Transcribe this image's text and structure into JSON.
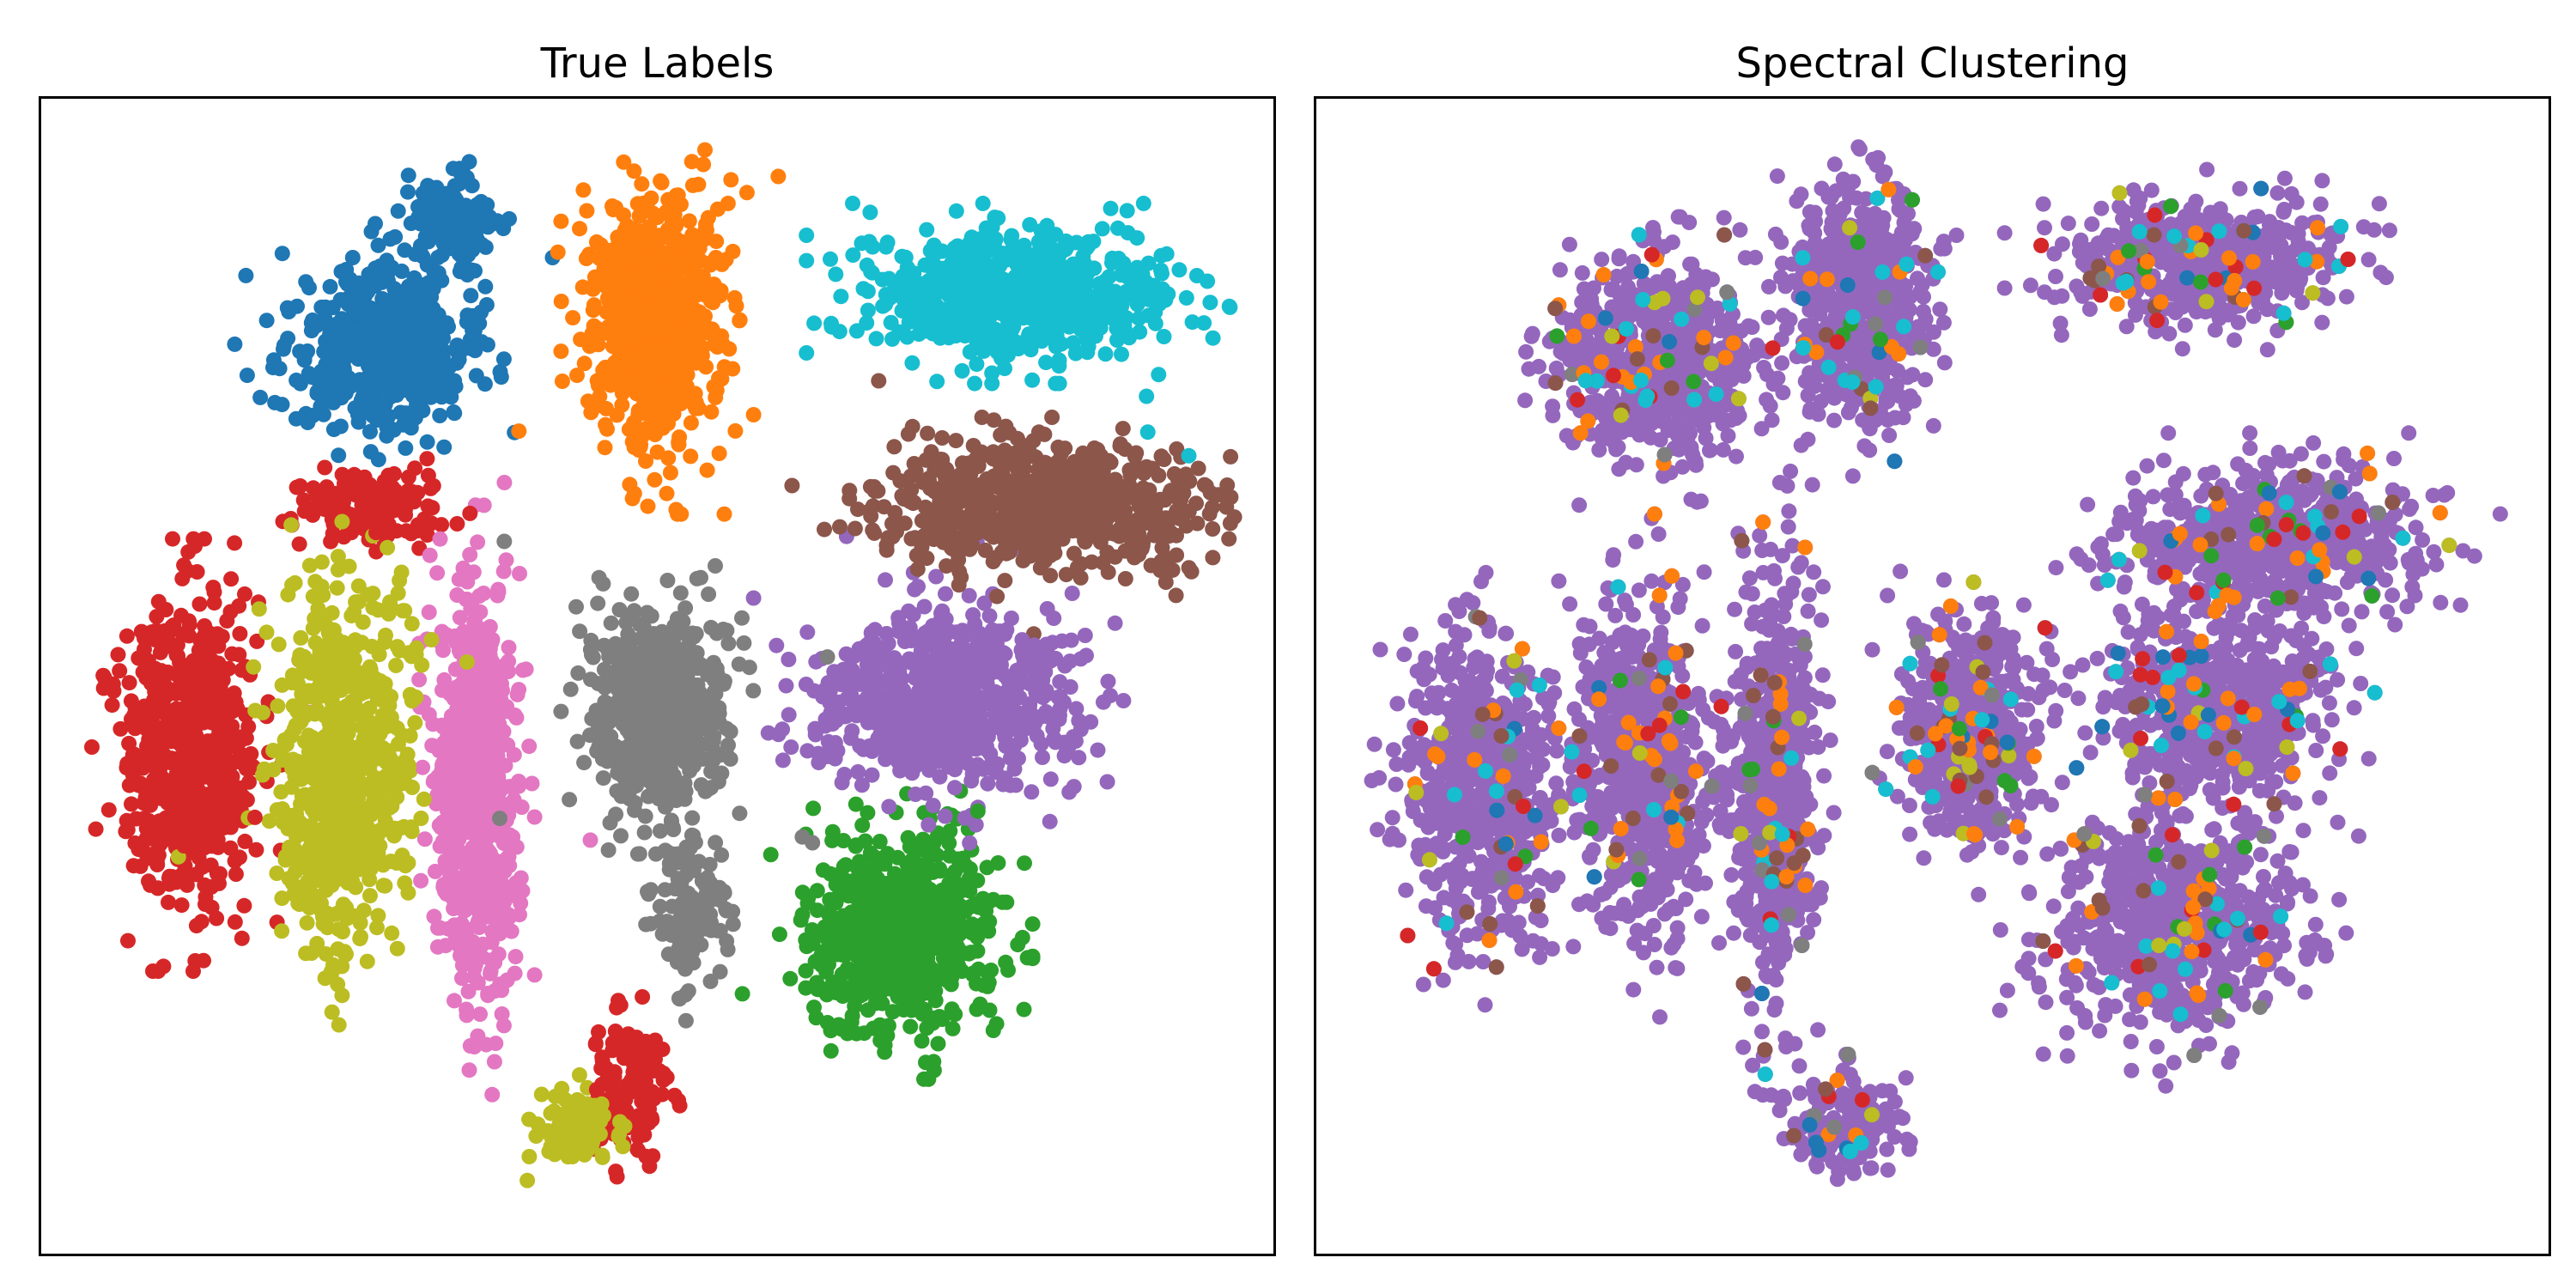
{
  "figure": {
    "panels": [
      {
        "title": "True Labels"
      },
      {
        "title": "Spectral Clustering"
      }
    ]
  },
  "chart_data": [
    {
      "type": "scatter",
      "title": "True Labels",
      "xlabel": "",
      "ylabel": "",
      "xlim": [
        0,
        100
      ],
      "ylim": [
        0,
        100
      ],
      "ticks": "none",
      "grid": false,
      "legend": "none",
      "point_density": "approximate",
      "series": [
        {
          "color": "#1f77b4",
          "clusters": [
            {
              "cx": 27,
              "cy": 79,
              "sx": 7,
              "sy": 7,
              "n": 520
            },
            {
              "cx": 33,
              "cy": 90,
              "sx": 3,
              "sy": 4,
              "n": 160
            }
          ]
        },
        {
          "color": "#ff7f0e",
          "clusters": [
            {
              "cx": 50,
              "cy": 82,
              "sx": 5,
              "sy": 11,
              "n": 700
            }
          ]
        },
        {
          "color": "#2ca02c",
          "clusters": [
            {
              "cx": 70,
              "cy": 27,
              "sx": 7,
              "sy": 8,
              "n": 700
            }
          ]
        },
        {
          "color": "#d62728",
          "clusters": [
            {
              "cx": 11,
              "cy": 43,
              "sx": 5,
              "sy": 12,
              "n": 620
            },
            {
              "cx": 26,
              "cy": 65,
              "sx": 6,
              "sy": 3,
              "n": 140
            },
            {
              "cx": 48,
              "cy": 13,
              "sx": 3,
              "sy": 6,
              "n": 120
            }
          ]
        },
        {
          "color": "#9467bd",
          "clusters": [
            {
              "cx": 74,
              "cy": 48,
              "sx": 10,
              "sy": 7,
              "n": 720
            }
          ]
        },
        {
          "color": "#8c564b",
          "clusters": [
            {
              "cx": 82,
              "cy": 65,
              "sx": 13,
              "sy": 5,
              "n": 720
            }
          ]
        },
        {
          "color": "#e377c2",
          "clusters": [
            {
              "cx": 35,
              "cy": 40,
              "sx": 3,
              "sy": 17,
              "n": 700
            }
          ]
        },
        {
          "color": "#7f7f7f",
          "clusters": [
            {
              "cx": 50,
              "cy": 47,
              "sx": 5,
              "sy": 8,
              "n": 620
            },
            {
              "cx": 53,
              "cy": 29,
              "sx": 3,
              "sy": 6,
              "n": 120
            }
          ]
        },
        {
          "color": "#bcbd22",
          "clusters": [
            {
              "cx": 24,
              "cy": 42,
              "sx": 5,
              "sy": 15,
              "n": 700
            },
            {
              "cx": 43,
              "cy": 10,
              "sx": 3,
              "sy": 3,
              "n": 90
            }
          ]
        },
        {
          "color": "#17becf",
          "clusters": [
            {
              "cx": 80,
              "cy": 84,
              "sx": 11,
              "sy": 5,
              "n": 720
            }
          ]
        }
      ]
    },
    {
      "type": "scatter",
      "title": "Spectral Clustering",
      "xlabel": "",
      "ylabel": "",
      "xlim": [
        0,
        100
      ],
      "ylim": [
        0,
        100
      ],
      "ticks": "none",
      "grid": false,
      "legend": "none",
      "point_density": "approximate",
      "base_color": "#9467bd",
      "clusters": [
        {
          "cx": 27,
          "cy": 78,
          "sx": 8,
          "sy": 8,
          "n": 640
        },
        {
          "cx": 44,
          "cy": 83,
          "sx": 5,
          "sy": 10,
          "n": 640
        },
        {
          "cx": 72,
          "cy": 87,
          "sx": 10,
          "sy": 5,
          "n": 620
        },
        {
          "cx": 78,
          "cy": 62,
          "sx": 12,
          "sy": 6,
          "n": 660
        },
        {
          "cx": 13,
          "cy": 40,
          "sx": 6,
          "sy": 12,
          "n": 620
        },
        {
          "cx": 26,
          "cy": 42,
          "sx": 5,
          "sy": 14,
          "n": 620
        },
        {
          "cx": 37,
          "cy": 40,
          "sx": 3,
          "sy": 17,
          "n": 600
        },
        {
          "cx": 53,
          "cy": 45,
          "sx": 5,
          "sy": 9,
          "n": 620
        },
        {
          "cx": 74,
          "cy": 47,
          "sx": 8,
          "sy": 7,
          "n": 620
        },
        {
          "cx": 70,
          "cy": 28,
          "sx": 9,
          "sy": 9,
          "n": 680
        },
        {
          "cx": 43,
          "cy": 10,
          "sx": 4,
          "sy": 4,
          "n": 160
        }
      ],
      "outlier_colors": [
        "#ff7f0e",
        "#ff7f0e",
        "#ff7f0e",
        "#8c564b",
        "#8c564b",
        "#17becf",
        "#17becf",
        "#2ca02c",
        "#d62728",
        "#1f77b4",
        "#bcbd22",
        "#7f7f7f"
      ],
      "outlier_count": 620
    }
  ]
}
